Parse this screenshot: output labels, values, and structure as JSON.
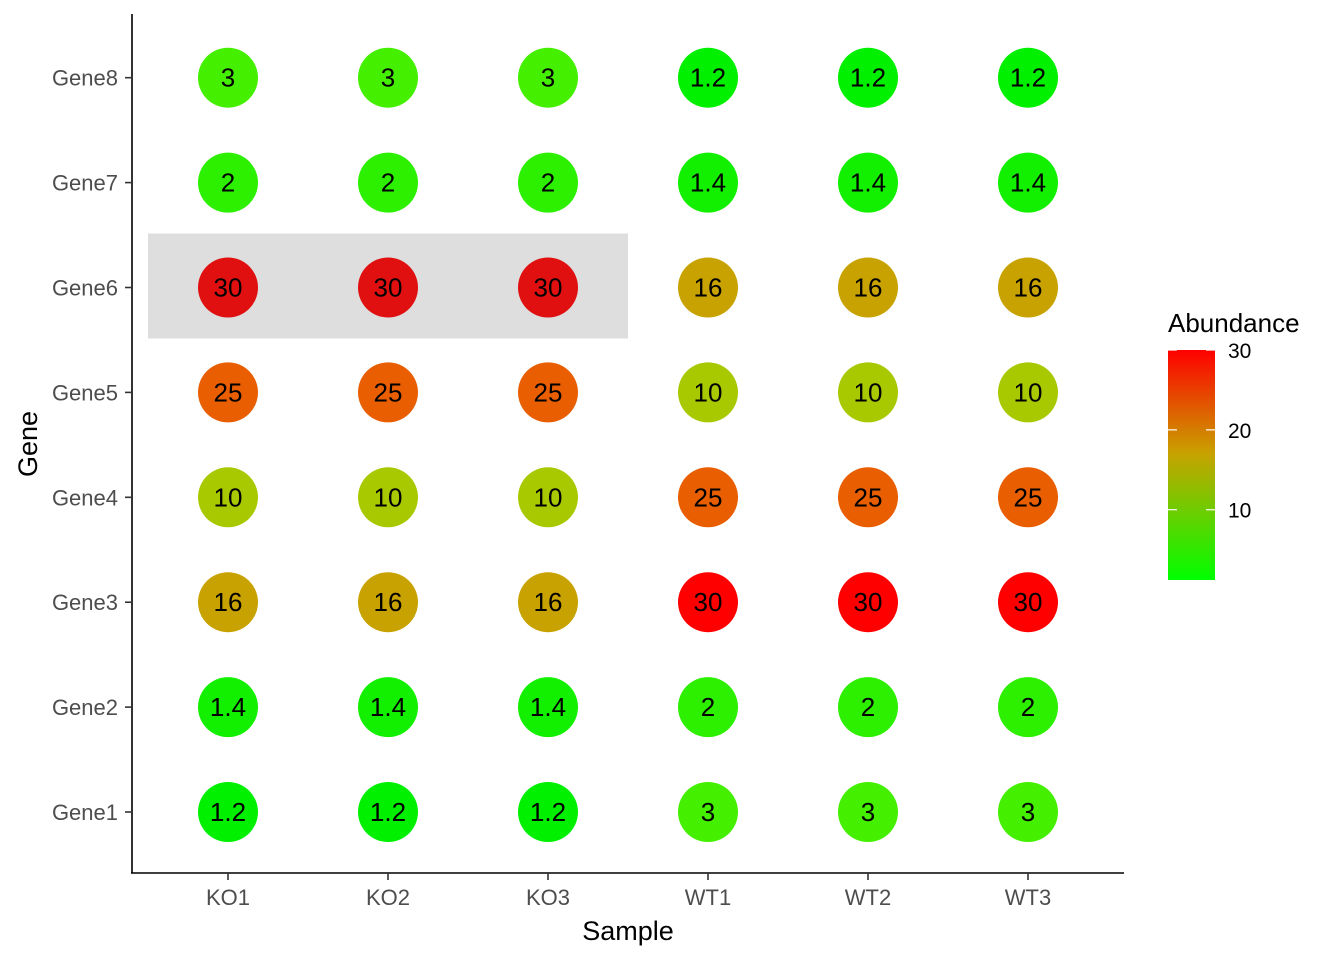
{
  "chart_data": {
    "type": "scatter",
    "subtype": "dot-matrix",
    "xlabel": "Sample",
    "ylabel": "Gene",
    "x_categories": [
      "KO1",
      "KO2",
      "KO3",
      "WT1",
      "WT2",
      "WT3"
    ],
    "y_categories": [
      "Gene1",
      "Gene2",
      "Gene3",
      "Gene4",
      "Gene5",
      "Gene6",
      "Gene7",
      "Gene8"
    ],
    "values": {
      "Gene1": [
        "1.2",
        "1.2",
        "1.2",
        "3",
        "3",
        "3"
      ],
      "Gene2": [
        "1.4",
        "1.4",
        "1.4",
        "2",
        "2",
        "2"
      ],
      "Gene3": [
        "16",
        "16",
        "16",
        "30",
        "30",
        "30"
      ],
      "Gene4": [
        "10",
        "10",
        "10",
        "25",
        "25",
        "25"
      ],
      "Gene5": [
        "25",
        "25",
        "25",
        "10",
        "10",
        "10"
      ],
      "Gene6": [
        "30",
        "30",
        "30",
        "16",
        "16",
        "16"
      ],
      "Gene7": [
        "2",
        "2",
        "2",
        "1.4",
        "1.4",
        "1.4"
      ],
      "Gene8": [
        "3",
        "3",
        "3",
        "1.2",
        "1.2",
        "1.2"
      ]
    },
    "dot_colors": {
      "Gene1": [
        "#00f000",
        "#00f000",
        "#00f000",
        "#44f000",
        "#44f000",
        "#44f000"
      ],
      "Gene2": [
        "#12f000",
        "#12f000",
        "#12f000",
        "#2cf000",
        "#2cf000",
        "#2cf000"
      ],
      "Gene3": [
        "#c8a200",
        "#c8a200",
        "#c8a200",
        "#ff0000",
        "#ff0000",
        "#ff0000"
      ],
      "Gene4": [
        "#a8c800",
        "#a8c800",
        "#a8c800",
        "#e85e00",
        "#e85e00",
        "#e85e00"
      ],
      "Gene5": [
        "#e85e00",
        "#e85e00",
        "#e85e00",
        "#a8c800",
        "#a8c800",
        "#a8c800"
      ],
      "Gene6": [
        "#e01010",
        "#e01010",
        "#e01010",
        "#c8a200",
        "#c8a200",
        "#c8a200"
      ],
      "Gene7": [
        "#2cf000",
        "#2cf000",
        "#2cf000",
        "#12f000",
        "#12f000",
        "#12f000"
      ],
      "Gene8": [
        "#44f000",
        "#44f000",
        "#44f000",
        "#00f000",
        "#00f000",
        "#00f000"
      ]
    },
    "highlight": {
      "row": "Gene6",
      "columns": [
        "KO1",
        "KO2",
        "KO3"
      ],
      "color": "#dedede"
    },
    "legend": {
      "title": "Abundance",
      "ticks": [
        "30",
        "20",
        "10"
      ],
      "tick_values": [
        30,
        20,
        10
      ],
      "range": [
        1.2,
        30
      ],
      "color_low": "#00ff00",
      "color_mid": "#c8a200",
      "color_high": "#ff0000",
      "position": "right"
    },
    "grid": false
  }
}
